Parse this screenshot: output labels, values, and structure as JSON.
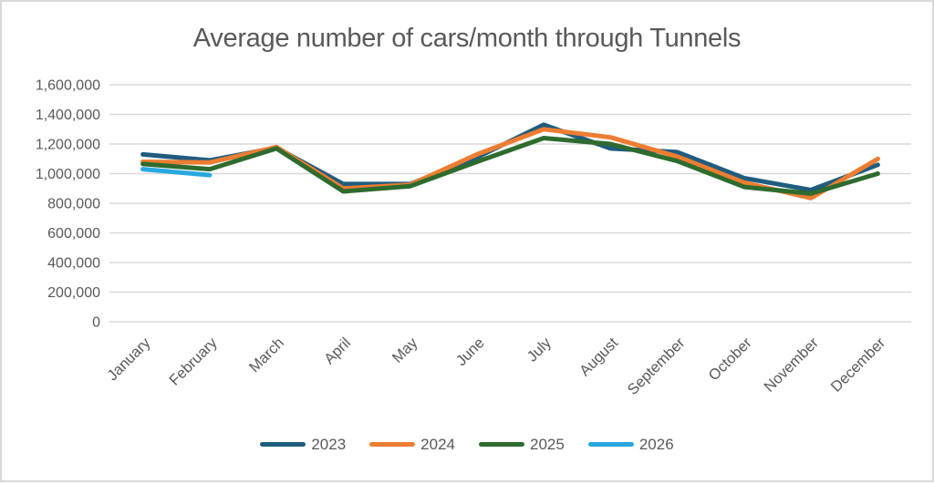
{
  "chart_data": {
    "type": "line",
    "title": "Average number of cars/month through Tunnels",
    "categories": [
      "January",
      "February",
      "March",
      "April",
      "May",
      "June",
      "July",
      "August",
      "September",
      "October",
      "November",
      "December"
    ],
    "series": [
      {
        "name": "2023",
        "color": "#1F5C7E",
        "values": [
          1130000,
          1090000,
          1175000,
          930000,
          930000,
          1110000,
          1330000,
          1170000,
          1145000,
          970000,
          890000,
          1060000
        ]
      },
      {
        "name": "2024",
        "color": "#ED7D31",
        "values": [
          1080000,
          1075000,
          1180000,
          900000,
          925000,
          1130000,
          1300000,
          1245000,
          1115000,
          940000,
          835000,
          1100000
        ]
      },
      {
        "name": "2025",
        "color": "#2E6B2E",
        "values": [
          1065000,
          1030000,
          1170000,
          880000,
          915000,
          1080000,
          1240000,
          1200000,
          1085000,
          910000,
          865000,
          1000000
        ]
      },
      {
        "name": "2026",
        "color": "#29A7DF",
        "values": [
          1030000,
          990000,
          null,
          null,
          null,
          null,
          null,
          null,
          null,
          null,
          null,
          null
        ]
      }
    ],
    "ylim": [
      0,
      1600000
    ],
    "ytick_step": 200000,
    "ytick_labels": [
      "0",
      "200,000",
      "400,000",
      "600,000",
      "800,000",
      "1,000,000",
      "1,200,000",
      "1,400,000",
      "1,600,000"
    ],
    "grid": true,
    "legend_position": "bottom"
  },
  "colors": {
    "text": "#595959",
    "gridline": "#D9D9D9",
    "background": "#FFFFFF",
    "border": "#D8D8D8"
  }
}
